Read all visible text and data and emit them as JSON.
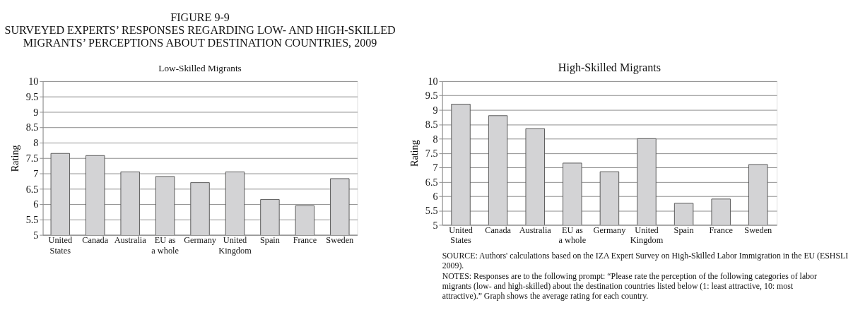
{
  "chart_data": [
    {
      "type": "bar",
      "title": "FIGURE 9-9\nSURVEYED EXPERTS’ RESPONSES REGARDING LOW- AND HIGH-SKILLED\nMIGRANTS’ PERCEPTIONS ABOUT DESTINATION COUNTRIES, 2009",
      "subtitle": "Low-Skilled Migrants",
      "ylabel": "Rating",
      "categories": [
        "United\nStates",
        "Canada",
        "Australia",
        "EU as\na whole",
        "Germany",
        "United\nKingdom",
        "Spain",
        "France",
        "Sweden"
      ],
      "values": [
        7.65,
        7.58,
        7.05,
        6.9,
        6.7,
        7.05,
        6.15,
        5.95,
        6.83
      ],
      "color": "#d3d3d5",
      "ylim": [
        5,
        10
      ],
      "yticks": [
        5,
        5.5,
        6,
        6.5,
        7,
        7.5,
        8,
        8.5,
        9,
        9.5,
        10
      ],
      "grid": "y"
    },
    {
      "type": "bar",
      "title": "High-Skilled Migrants",
      "ylabel": "Rating",
      "categories": [
        "United\nStates",
        "Canada",
        "Australia",
        "EU as\na whole",
        "Germany",
        "United\nKingdom",
        "Spain",
        "France",
        "Sweden"
      ],
      "values": [
        9.2,
        8.8,
        8.35,
        7.15,
        6.85,
        8.0,
        5.75,
        5.9,
        7.1
      ],
      "color": "#d3d3d5",
      "ylim": [
        5,
        10
      ],
      "yticks": [
        5,
        5.5,
        6,
        6.5,
        7,
        7.5,
        8,
        8.5,
        9,
        9.5,
        10
      ],
      "grid": "y",
      "annotations": [
        "SOURCE: Authors' calculations based on the IZA Expert Survey on High-Skilled Labor Immigration in the EU (ESHSLI 2009).",
        "NOTES: Responses are to the following prompt: “Please rate the perception of the following categories of labor migrants (low- and high-skilled) about the destination countries listed below (1: least attractive, 10: most attractive).” Graph shows the average rating for each country."
      ]
    }
  ]
}
